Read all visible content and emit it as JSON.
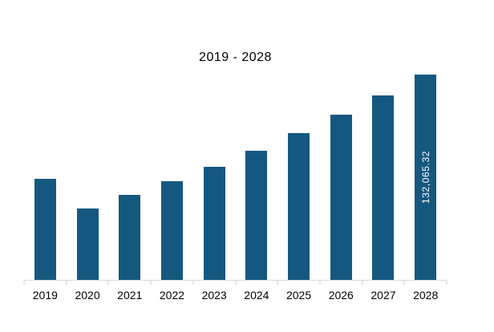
{
  "chart_data": {
    "type": "bar",
    "title": "2019 - 2028",
    "categories": [
      "2019",
      "2020",
      "2021",
      "2022",
      "2023",
      "2024",
      "2025",
      "2026",
      "2027",
      "2028"
    ],
    "values": [
      65270,
      46250,
      54990,
      63730,
      72980,
      83250,
      94560,
      106380,
      118720,
      132065.32
    ],
    "values_note": "Only the 2028 bar is labeled (132,065.32); other values estimated from bar heights",
    "data_labels": [
      "",
      "",
      "",
      "",
      "",
      "",
      "",
      "",
      "",
      "132,065.32"
    ],
    "xlabel": "",
    "ylabel": "",
    "ylim": [
      0,
      132065.32
    ],
    "grid": false,
    "legend": false,
    "colors": {
      "bar": "#15587f",
      "data_label": "#ffffff",
      "axis": "#d9d9d9",
      "tick": "#cfcfcf",
      "text": "#000000",
      "background": "#ffffff"
    }
  }
}
